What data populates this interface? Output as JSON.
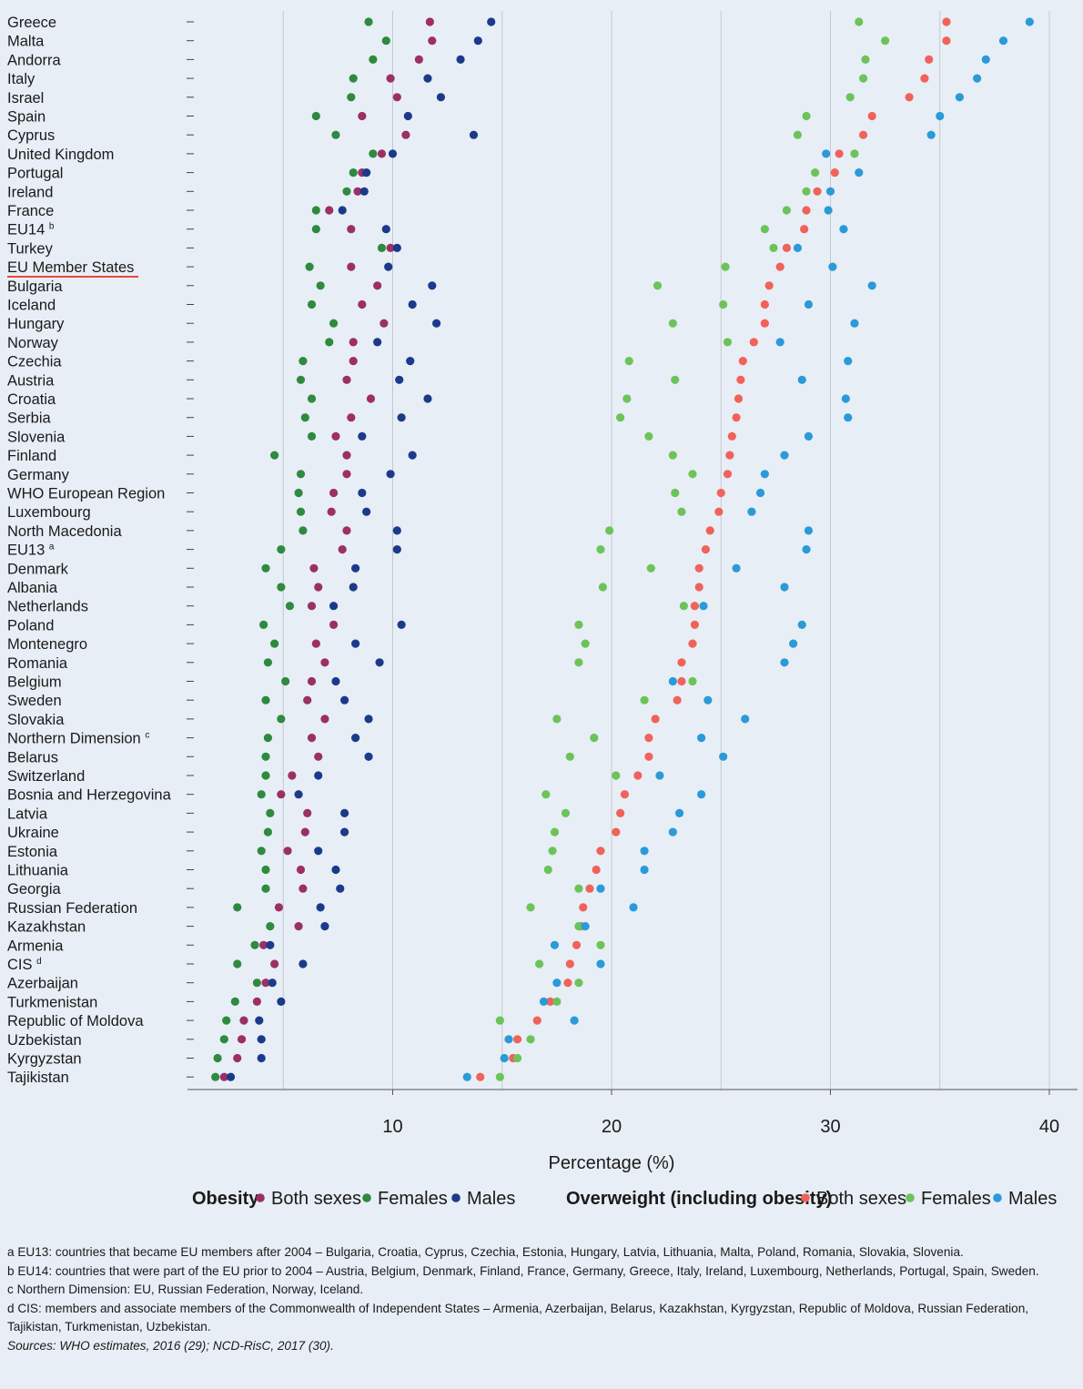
{
  "chart_data": {
    "type": "scatter",
    "xlabel": "Percentage (%)",
    "xticks": [
      10,
      20,
      30,
      40
    ],
    "xlim": [
      0,
      40
    ],
    "grid": true,
    "legend": {
      "position": "bottom",
      "obesity_title": "Obesity",
      "overweight_title": "Overweight (including obesity)",
      "labels": [
        "Both sexes",
        "Females",
        "Males"
      ]
    },
    "colors": {
      "obesity_both": "#9b2f66",
      "obesity_female": "#2e8a3f",
      "obesity_male": "#1b3a8a",
      "overweight_both": "#f0625a",
      "overweight_female": "#6cc35a",
      "overweight_male": "#2a9ad8"
    },
    "series_keys": [
      "obesity_both",
      "obesity_female",
      "obesity_male",
      "overweight_both",
      "overweight_female",
      "overweight_male"
    ],
    "countries": [
      {
        "name": "Greece",
        "values": [
          11.7,
          8.9,
          14.5,
          35.3,
          31.3,
          39.1
        ]
      },
      {
        "name": "Malta",
        "values": [
          11.8,
          9.7,
          13.9,
          35.3,
          32.5,
          37.9
        ]
      },
      {
        "name": "Andorra",
        "values": [
          11.2,
          9.1,
          13.1,
          34.5,
          31.6,
          37.1
        ]
      },
      {
        "name": "Italy",
        "values": [
          9.9,
          8.2,
          11.6,
          34.3,
          31.5,
          36.7
        ]
      },
      {
        "name": "Israel",
        "values": [
          10.2,
          8.1,
          12.2,
          33.6,
          30.9,
          35.9
        ]
      },
      {
        "name": "Spain",
        "values": [
          8.6,
          6.5,
          10.7,
          31.9,
          28.9,
          35.0
        ]
      },
      {
        "name": "Cyprus",
        "values": [
          10.6,
          7.4,
          13.7,
          31.5,
          28.5,
          34.6
        ]
      },
      {
        "name": "United Kingdom",
        "values": [
          9.5,
          9.1,
          10.0,
          30.4,
          31.1,
          29.8
        ]
      },
      {
        "name": "Portugal",
        "values": [
          8.6,
          8.2,
          8.8,
          30.2,
          29.3,
          31.3
        ]
      },
      {
        "name": "Ireland",
        "values": [
          8.4,
          7.9,
          8.7,
          29.4,
          28.9,
          30.0
        ]
      },
      {
        "name": "France",
        "values": [
          7.1,
          6.5,
          7.7,
          28.9,
          28.0,
          29.9
        ]
      },
      {
        "name": "EU14 b",
        "values": [
          8.1,
          6.5,
          9.7,
          28.8,
          27.0,
          30.6
        ]
      },
      {
        "name": "Turkey",
        "values": [
          9.9,
          9.5,
          10.2,
          28.0,
          27.4,
          28.5
        ]
      },
      {
        "name": "EU Member States",
        "values": [
          8.1,
          6.2,
          9.8,
          27.7,
          25.2,
          30.1
        ]
      },
      {
        "name": "Bulgaria",
        "values": [
          9.3,
          6.7,
          11.8,
          27.2,
          22.1,
          31.9
        ]
      },
      {
        "name": "Iceland",
        "values": [
          8.6,
          6.3,
          10.9,
          27.0,
          25.1,
          29.0
        ]
      },
      {
        "name": "Hungary",
        "values": [
          9.6,
          7.3,
          12.0,
          27.0,
          22.8,
          31.1
        ]
      },
      {
        "name": "Norway",
        "values": [
          8.2,
          7.1,
          9.3,
          26.5,
          25.3,
          27.7
        ]
      },
      {
        "name": "Czechia",
        "values": [
          8.2,
          5.9,
          10.8,
          26.0,
          20.8,
          30.8
        ]
      },
      {
        "name": "Austria",
        "values": [
          7.9,
          5.8,
          10.3,
          25.9,
          22.9,
          28.7
        ]
      },
      {
        "name": "Croatia",
        "values": [
          9.0,
          6.3,
          11.6,
          25.8,
          20.7,
          30.7
        ]
      },
      {
        "name": "Serbia",
        "values": [
          8.1,
          6.0,
          10.4,
          25.7,
          20.4,
          30.8
        ]
      },
      {
        "name": "Slovenia",
        "values": [
          7.4,
          6.3,
          8.6,
          25.5,
          21.7,
          29.0
        ]
      },
      {
        "name": "Finland",
        "values": [
          7.9,
          4.6,
          10.9,
          25.4,
          22.8,
          27.9
        ]
      },
      {
        "name": "Germany",
        "values": [
          7.9,
          5.8,
          9.9,
          25.3,
          23.7,
          27.0
        ]
      },
      {
        "name": "WHO European Region",
        "values": [
          7.3,
          5.7,
          8.6,
          25.0,
          22.9,
          26.8
        ]
      },
      {
        "name": "Luxembourg",
        "values": [
          7.2,
          5.8,
          8.8,
          24.9,
          23.2,
          26.4
        ]
      },
      {
        "name": "North Macedonia",
        "values": [
          7.9,
          5.9,
          10.2,
          24.5,
          19.9,
          29.0
        ]
      },
      {
        "name": "EU13 a",
        "values": [
          7.7,
          4.9,
          10.2,
          24.3,
          19.5,
          28.9
        ]
      },
      {
        "name": "Denmark",
        "values": [
          6.4,
          4.2,
          8.3,
          24.0,
          21.8,
          25.7
        ]
      },
      {
        "name": "Albania",
        "values": [
          6.6,
          4.9,
          8.2,
          24.0,
          19.6,
          27.9
        ]
      },
      {
        "name": "Netherlands",
        "values": [
          6.3,
          5.3,
          7.3,
          23.8,
          23.3,
          24.2
        ]
      },
      {
        "name": "Poland",
        "values": [
          7.3,
          4.1,
          10.4,
          23.8,
          18.5,
          28.7
        ]
      },
      {
        "name": "Montenegro",
        "values": [
          6.5,
          4.6,
          8.3,
          23.7,
          18.8,
          28.3
        ]
      },
      {
        "name": "Romania",
        "values": [
          6.9,
          4.3,
          9.4,
          23.2,
          18.5,
          27.9
        ]
      },
      {
        "name": "Belgium",
        "values": [
          6.3,
          5.1,
          7.4,
          23.2,
          23.7,
          22.8
        ]
      },
      {
        "name": "Sweden",
        "values": [
          6.1,
          4.2,
          7.8,
          23.0,
          21.5,
          24.4
        ]
      },
      {
        "name": "Slovakia",
        "values": [
          6.9,
          4.9,
          8.9,
          22.0,
          17.5,
          26.1
        ]
      },
      {
        "name": "Northern Dimension c",
        "values": [
          6.3,
          4.3,
          8.3,
          21.7,
          19.2,
          24.1
        ]
      },
      {
        "name": "Belarus",
        "values": [
          6.6,
          4.2,
          8.9,
          21.7,
          18.1,
          25.1
        ]
      },
      {
        "name": "Switzerland",
        "values": [
          5.4,
          4.2,
          6.6,
          21.2,
          20.2,
          22.2
        ]
      },
      {
        "name": "Bosnia and Herzegovina",
        "values": [
          4.9,
          4.0,
          5.7,
          20.6,
          17.0,
          24.1
        ]
      },
      {
        "name": "Latvia",
        "values": [
          6.1,
          4.4,
          7.8,
          20.4,
          17.9,
          23.1
        ]
      },
      {
        "name": "Ukraine",
        "values": [
          6.0,
          4.3,
          7.8,
          20.2,
          17.4,
          22.8
        ]
      },
      {
        "name": "Estonia",
        "values": [
          5.2,
          4.0,
          6.6,
          19.5,
          17.3,
          21.5
        ]
      },
      {
        "name": "Lithuania",
        "values": [
          5.8,
          4.2,
          7.4,
          19.3,
          17.1,
          21.5
        ]
      },
      {
        "name": "Georgia",
        "values": [
          5.9,
          4.2,
          7.6,
          19.0,
          18.5,
          19.5
        ]
      },
      {
        "name": "Russian Federation",
        "values": [
          4.8,
          2.9,
          6.7,
          18.7,
          16.3,
          21.0
        ]
      },
      {
        "name": "Kazakhstan",
        "values": [
          5.7,
          4.4,
          6.9,
          18.6,
          18.5,
          18.8
        ]
      },
      {
        "name": "Armenia",
        "values": [
          4.1,
          3.7,
          4.4,
          18.4,
          19.5,
          17.4
        ]
      },
      {
        "name": "CIS d",
        "values": [
          4.6,
          2.9,
          5.9,
          18.1,
          16.7,
          19.5
        ]
      },
      {
        "name": "Azerbaijan",
        "values": [
          4.2,
          3.8,
          4.5,
          18.0,
          18.5,
          17.5
        ]
      },
      {
        "name": "Turkmenistan",
        "values": [
          3.8,
          2.8,
          4.9,
          17.2,
          17.5,
          16.9
        ]
      },
      {
        "name": "Republic of Moldova",
        "values": [
          3.2,
          2.4,
          3.9,
          16.6,
          14.9,
          18.3
        ]
      },
      {
        "name": "Uzbekistan",
        "values": [
          3.1,
          2.3,
          4.0,
          15.7,
          16.3,
          15.3
        ]
      },
      {
        "name": "Kyrgyzstan",
        "values": [
          2.9,
          2.0,
          4.0,
          15.5,
          15.7,
          15.1
        ]
      },
      {
        "name": "Tajikistan",
        "values": [
          2.3,
          1.9,
          2.6,
          14.0,
          14.9,
          13.4
        ]
      }
    ]
  },
  "notes": {
    "a": "a EU13: countries that became EU members after 2004 – Bulgaria, Croatia, Cyprus, Czechia, Estonia, Hungary, Latvia, Lithuania, Malta, Poland, Romania, Slovakia, Slovenia.",
    "b": "b EU14: countries that were part of the EU prior to 2004 – Austria, Belgium, Denmark, Finland, France, Germany, Greece, Italy, Ireland, Luxembourg, Netherlands, Portugal, Spain, Sweden.",
    "c": "c Northern Dimension: EU, Russian Federation, Norway, Iceland.",
    "d": "d CIS: members and associate members of the Commonwealth of Independent States – Armenia, Azerbaijan, Belarus, Kazakhstan, Kyrgyzstan, Republic of Moldova, Russian Federation, Tajikistan, Turkmenistan, Uzbekistan.",
    "sources": "Sources: WHO estimates, 2016 (29); NCD-RisC, 2017 (30)."
  }
}
